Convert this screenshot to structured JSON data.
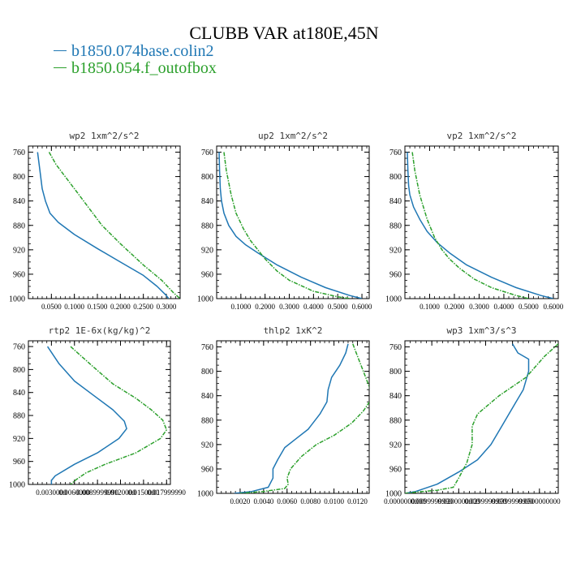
{
  "title": "CLUBB VAR at180E,45N",
  "legend": [
    {
      "label": "b1850.074base.colin2",
      "color": "#1f77b4"
    },
    {
      "label": "b1850.054.f_outofbox",
      "color": "#2ca02c"
    }
  ],
  "chart_data": [
    {
      "type": "line",
      "title": "wp2   1xm^2/s^2",
      "xlim": [
        0.0,
        0.33
      ],
      "ylim": [
        1000,
        750
      ],
      "xticks": [
        0.05,
        0.1,
        0.15,
        0.2,
        0.25,
        0.3
      ],
      "xtick_labels": [
        "0.0500",
        "0.1000",
        "0.1500",
        "0.2000",
        "0.2500",
        "0.3000"
      ],
      "yticks": [
        760,
        800,
        840,
        880,
        920,
        960,
        1000
      ],
      "series": [
        {
          "name": "b1850.074base.colin2",
          "color": "#1f77b4",
          "x": [
            0.02,
            0.025,
            0.03,
            0.037,
            0.047,
            0.065,
            0.1,
            0.15,
            0.2,
            0.25,
            0.28,
            0.3,
            0.305
          ],
          "y": [
            760,
            790,
            820,
            840,
            860,
            875,
            895,
            918,
            940,
            962,
            980,
            995,
            1000
          ]
        },
        {
          "name": "b1850.054.f_outofbox",
          "color": "#2ca02c",
          "x": [
            0.045,
            0.06,
            0.08,
            0.1,
            0.13,
            0.16,
            0.2,
            0.25,
            0.29,
            0.315,
            0.33
          ],
          "y": [
            760,
            780,
            800,
            820,
            850,
            880,
            910,
            945,
            970,
            990,
            1000
          ]
        }
      ]
    },
    {
      "type": "line",
      "title": "up2   1xm^2/s^2",
      "xlim": [
        0.0,
        0.63
      ],
      "ylim": [
        1000,
        750
      ],
      "xticks": [
        0.1,
        0.2,
        0.3,
        0.4,
        0.5,
        0.6
      ],
      "xtick_labels": [
        "0.1000",
        "0.2000",
        "0.3000",
        "0.4000",
        "0.5000",
        "0.6000"
      ],
      "yticks": [
        760,
        800,
        840,
        880,
        920,
        960,
        1000
      ],
      "series": [
        {
          "name": "b1850.074base.colin2",
          "color": "#1f77b4",
          "x": [
            0.01,
            0.012,
            0.015,
            0.02,
            0.03,
            0.05,
            0.08,
            0.12,
            0.17,
            0.25,
            0.35,
            0.45,
            0.55,
            0.6
          ],
          "y": [
            760,
            790,
            820,
            840,
            860,
            880,
            898,
            912,
            925,
            945,
            965,
            982,
            995,
            1000
          ]
        },
        {
          "name": "b1850.054.f_outofbox",
          "color": "#2ca02c",
          "x": [
            0.03,
            0.04,
            0.06,
            0.08,
            0.11,
            0.14,
            0.17,
            0.2,
            0.25,
            0.3,
            0.4,
            0.5,
            0.55
          ],
          "y": [
            760,
            790,
            830,
            860,
            885,
            905,
            920,
            935,
            955,
            970,
            988,
            997,
            1000
          ]
        }
      ]
    },
    {
      "type": "line",
      "title": "vp2   1xm^2/s^2",
      "xlim": [
        0.0,
        0.62
      ],
      "ylim": [
        1000,
        750
      ],
      "xticks": [
        0.1,
        0.2,
        0.3,
        0.4,
        0.5,
        0.6
      ],
      "xtick_labels": [
        "0.1000",
        "0.2000",
        "0.3000",
        "0.4000",
        "0.5000",
        "0.6000"
      ],
      "yticks": [
        760,
        800,
        840,
        880,
        920,
        960,
        1000
      ],
      "series": [
        {
          "name": "b1850.074base.colin2",
          "color": "#1f77b4",
          "x": [
            0.01,
            0.012,
            0.015,
            0.02,
            0.035,
            0.06,
            0.09,
            0.13,
            0.18,
            0.25,
            0.35,
            0.45,
            0.55,
            0.6
          ],
          "y": [
            760,
            790,
            815,
            830,
            850,
            870,
            890,
            908,
            925,
            945,
            965,
            982,
            995,
            1000
          ]
        },
        {
          "name": "b1850.054.f_outofbox",
          "color": "#2ca02c",
          "x": [
            0.03,
            0.04,
            0.06,
            0.09,
            0.12,
            0.15,
            0.18,
            0.22,
            0.28,
            0.35,
            0.45,
            0.5
          ],
          "y": [
            760,
            790,
            830,
            870,
            900,
            920,
            935,
            950,
            968,
            982,
            995,
            1000
          ]
        }
      ]
    },
    {
      "type": "line",
      "title": "rtp2   1E-6x(kg/kg)^2",
      "xlim": [
        0.0,
        0.0185
      ],
      "ylim": [
        1000,
        750
      ],
      "xticks": [
        0.003,
        0.006,
        0.009,
        0.012,
        0.015,
        0.018
      ],
      "xtick_labels": [
        "0.0030000",
        "0.0060000",
        "0.0089999990",
        "0.0120000",
        "0.0150000",
        "0.017999990"
      ],
      "yticks": [
        760,
        800,
        840,
        880,
        920,
        960,
        1000
      ],
      "series": [
        {
          "name": "b1850.074base.colin2",
          "color": "#1f77b4",
          "x": [
            0.0025,
            0.004,
            0.006,
            0.0085,
            0.011,
            0.0125,
            0.0128,
            0.0118,
            0.009,
            0.006,
            0.0035,
            0.003,
            0.003
          ],
          "y": [
            760,
            790,
            820,
            845,
            870,
            890,
            903,
            920,
            945,
            965,
            985,
            993,
            1000
          ]
        },
        {
          "name": "b1850.054.f_outofbox",
          "color": "#2ca02c",
          "x": [
            0.0055,
            0.008,
            0.011,
            0.014,
            0.016,
            0.0175,
            0.018,
            0.0172,
            0.014,
            0.01,
            0.0075,
            0.0062,
            0.0055
          ],
          "y": [
            760,
            790,
            825,
            850,
            870,
            888,
            905,
            920,
            945,
            965,
            980,
            992,
            1000
          ]
        }
      ]
    },
    {
      "type": "line",
      "title": "thlp2   1xK^2",
      "xlim": [
        0.0,
        0.013
      ],
      "ylim": [
        1000,
        750
      ],
      "xticks": [
        0.002,
        0.004,
        0.006,
        0.008,
        0.01,
        0.012
      ],
      "xtick_labels": [
        "0.0020",
        "0.0040",
        "0.0060",
        "0.0080",
        "0.0100",
        "0.0120"
      ],
      "yticks": [
        760,
        800,
        840,
        880,
        920,
        960,
        1000
      ],
      "series": [
        {
          "name": "b1850.074base.colin2",
          "color": "#1f77b4",
          "x": [
            0.0112,
            0.011,
            0.0105,
            0.0098,
            0.0095,
            0.0094,
            0.0088,
            0.0078,
            0.0068,
            0.0058,
            0.0052,
            0.0048,
            0.0048,
            0.0044,
            0.003,
            0.0015
          ],
          "y": [
            755,
            770,
            790,
            810,
            830,
            850,
            870,
            895,
            910,
            925,
            945,
            960,
            975,
            990,
            997,
            1000
          ]
        },
        {
          "name": "b1850.054.f_outofbox",
          "color": "#2ca02c",
          "x": [
            0.0116,
            0.012,
            0.0125,
            0.013,
            0.0132,
            0.0125,
            0.0115,
            0.01,
            0.0085,
            0.0072,
            0.0063,
            0.006,
            0.0061,
            0.0058,
            0.004,
            0.002
          ],
          "y": [
            755,
            775,
            800,
            825,
            845,
            865,
            885,
            905,
            920,
            940,
            960,
            975,
            985,
            992,
            997,
            1000
          ]
        }
      ]
    },
    {
      "type": "line",
      "title": "wp3   1xm^3/s^3",
      "xlim": [
        0.0,
        0.057
      ],
      "ylim": [
        1000,
        750
      ],
      "xticks": [
        0.0,
        0.01,
        0.02,
        0.03,
        0.04,
        0.05
      ],
      "xtick_labels": [
        "0.0000000000",
        "0.0099999990",
        "0.0200000000",
        "0.0299999990",
        "0.0399999990",
        "0.0500000000"
      ],
      "yticks": [
        760,
        800,
        840,
        880,
        920,
        960,
        1000
      ],
      "series": [
        {
          "name": "b1850.074base.colin2",
          "color": "#1f77b4",
          "x": [
            0.04,
            0.042,
            0.046,
            0.046,
            0.044,
            0.04,
            0.036,
            0.032,
            0.027,
            0.02,
            0.012,
            0.004,
            0.0
          ],
          "y": [
            755,
            770,
            780,
            800,
            830,
            860,
            890,
            920,
            945,
            965,
            985,
            997,
            1000
          ]
        },
        {
          "name": "b1850.054.f_outofbox",
          "color": "#2ca02c",
          "x": [
            0.057,
            0.052,
            0.045,
            0.035,
            0.027,
            0.025,
            0.025,
            0.023,
            0.02,
            0.018,
            0.012,
            0.004,
            0.0
          ],
          "y": [
            755,
            775,
            810,
            840,
            870,
            890,
            920,
            950,
            975,
            990,
            995,
            998,
            1000
          ]
        }
      ]
    }
  ]
}
